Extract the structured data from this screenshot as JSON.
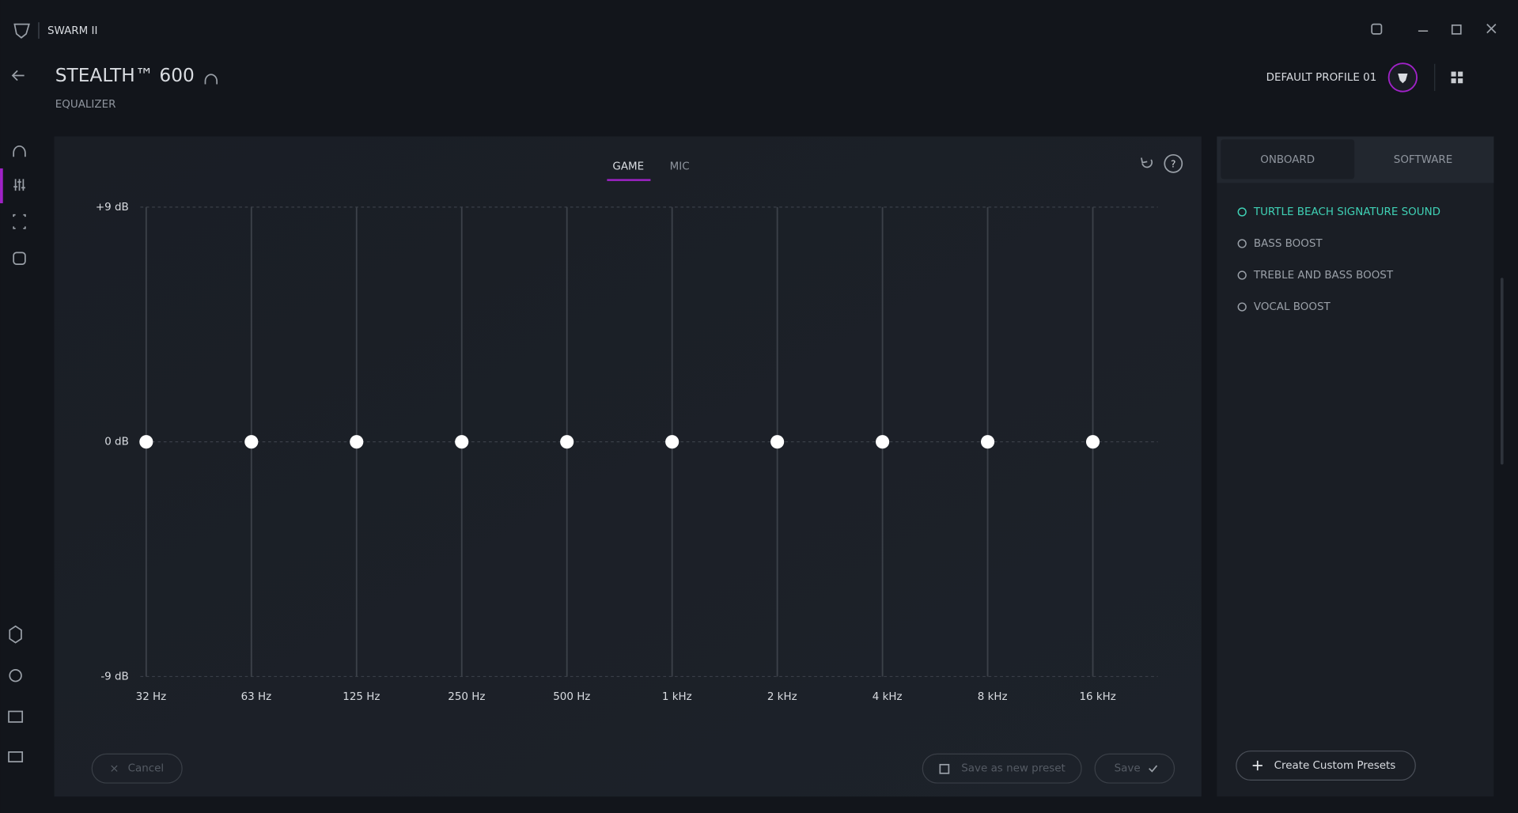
{
  "app": {
    "name": "SWARM II"
  },
  "header": {
    "device": "STEALTH™ 600",
    "section": "EQUALIZER",
    "profile": "DEFAULT PROFILE 01"
  },
  "tabs": [
    "GAME",
    "MIC"
  ],
  "chart_data": {
    "type": "equalizer",
    "categories": [
      "32 Hz",
      "63 Hz",
      "125 Hz",
      "250 Hz",
      "500 Hz",
      "1 kHz",
      "2 kHz",
      "4 kHz",
      "8 kHz",
      "16 kHz"
    ],
    "values": [
      0,
      0,
      0,
      0,
      0,
      0,
      0,
      0,
      0,
      0
    ],
    "ylim": [
      -9,
      9
    ],
    "yticks": [
      {
        "value": 9,
        "label": "+9 dB"
      },
      {
        "value": 0,
        "label": "0 dB"
      },
      {
        "value": -9,
        "label": "-9 dB"
      }
    ],
    "color": "#ffffff",
    "grid": true
  },
  "buttons": {
    "cancel": "Cancel",
    "save_as_preset": "Save as new preset",
    "save": "Save"
  },
  "preset_panel": {
    "tabs": [
      "ONBOARD",
      "SOFTWARE"
    ],
    "presets": [
      "TURTLE BEACH SIGNATURE SOUND",
      "BASS BOOST",
      "TREBLE AND BASS BOOST",
      "VOCAL BOOST"
    ],
    "create": "Create Custom Presets"
  }
}
